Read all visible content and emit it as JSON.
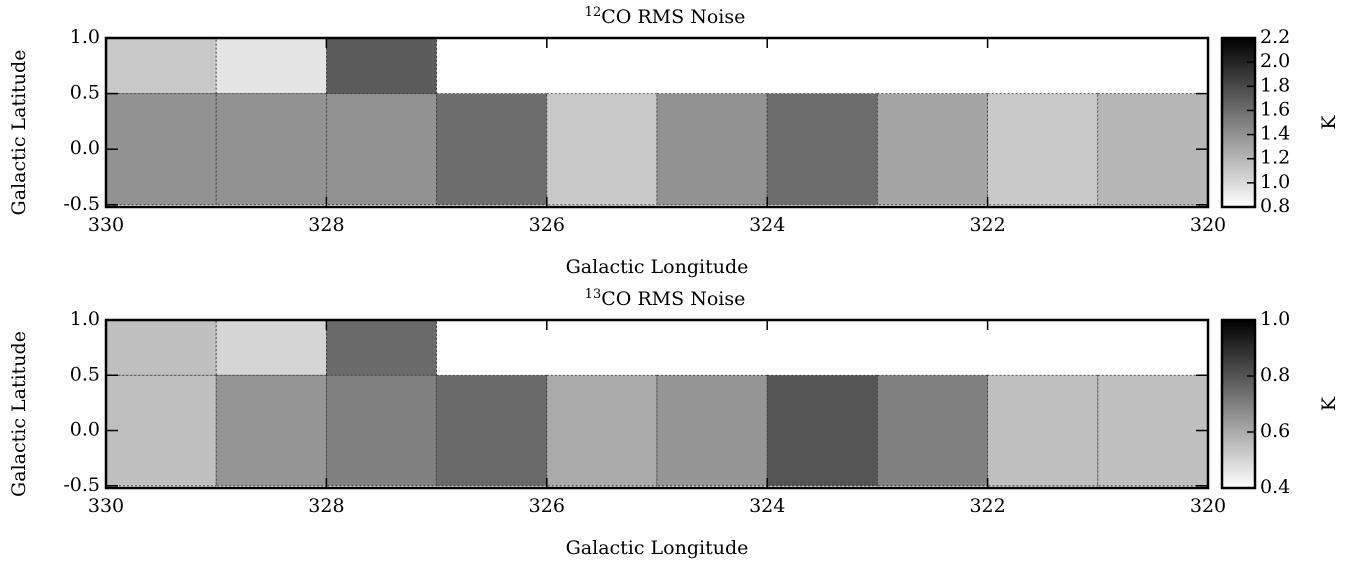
{
  "chart_data": [
    {
      "type": "heatmap",
      "title_superscript": "12",
      "title": "CO RMS Noise",
      "x_label": "Galactic Longitude",
      "y_label": "Galactic Latitude",
      "colorbar_label": "K",
      "xlim": [
        330,
        320
      ],
      "xticks": [
        330,
        328,
        326,
        324,
        322,
        320
      ],
      "ylim": [
        -0.52,
        1.0
      ],
      "yticks": [
        -0.5,
        {
          "value": 0,
          "label": "0.0"
        },
        0.5,
        {
          "value": 1,
          "label": "1.0"
        }
      ],
      "clim": [
        0.8,
        2.2
      ],
      "cticks": [
        0.8,
        {
          "value": 1,
          "label": "1.0"
        },
        1.2,
        1.4,
        1.6,
        1.8,
        {
          "value": 2,
          "label": "2.0"
        },
        2.2
      ],
      "tiles": [
        {
          "lon": [
            330,
            329
          ],
          "lat": [
            0.5,
            1.0
          ],
          "value": 1.1
        },
        {
          "lon": [
            329,
            328
          ],
          "lat": [
            0.5,
            1.0
          ],
          "value": 0.95
        },
        {
          "lon": [
            328,
            327
          ],
          "lat": [
            0.5,
            1.0
          ],
          "value": 1.7
        },
        {
          "lon": [
            330,
            329
          ],
          "lat": [
            -0.5,
            0.5
          ],
          "value": 1.4
        },
        {
          "lon": [
            329,
            328
          ],
          "lat": [
            -0.5,
            0.5
          ],
          "value": 1.4
        },
        {
          "lon": [
            328,
            327
          ],
          "lat": [
            -0.5,
            0.5
          ],
          "value": 1.4
        },
        {
          "lon": [
            327,
            326
          ],
          "lat": [
            -0.5,
            0.5
          ],
          "value": 1.6
        },
        {
          "lon": [
            326,
            325
          ],
          "lat": [
            -0.5,
            0.5
          ],
          "value": 1.1
        },
        {
          "lon": [
            325,
            324
          ],
          "lat": [
            -0.5,
            0.5
          ],
          "value": 1.4
        },
        {
          "lon": [
            324,
            323
          ],
          "lat": [
            -0.5,
            0.5
          ],
          "value": 1.6
        },
        {
          "lon": [
            323,
            322
          ],
          "lat": [
            -0.5,
            0.5
          ],
          "value": 1.3
        },
        {
          "lon": [
            322,
            321
          ],
          "lat": [
            -0.5,
            0.5
          ],
          "value": 1.1
        },
        {
          "lon": [
            321,
            320
          ],
          "lat": [
            -0.5,
            0.5
          ],
          "value": 1.2
        }
      ]
    },
    {
      "type": "heatmap",
      "title_superscript": "13",
      "title": "CO RMS Noise",
      "x_label": "Galactic Longitude",
      "y_label": "Galactic Latitude",
      "colorbar_label": "K",
      "xlim": [
        330,
        320
      ],
      "xticks": [
        330,
        328,
        326,
        324,
        322,
        320
      ],
      "ylim": [
        -0.52,
        1.0
      ],
      "yticks": [
        -0.5,
        {
          "value": 0,
          "label": "0.0"
        },
        0.5,
        {
          "value": 1,
          "label": "1.0"
        }
      ],
      "clim": [
        0.4,
        1.0
      ],
      "cticks": [
        0.4,
        0.6,
        0.8,
        {
          "value": 1,
          "label": "1.0"
        }
      ],
      "tiles": [
        {
          "lon": [
            330,
            329
          ],
          "lat": [
            0.5,
            1.0
          ],
          "value": 0.55
        },
        {
          "lon": [
            329,
            328
          ],
          "lat": [
            0.5,
            1.0
          ],
          "value": 0.5
        },
        {
          "lon": [
            328,
            327
          ],
          "lat": [
            0.5,
            1.0
          ],
          "value": 0.75
        },
        {
          "lon": [
            330,
            329
          ],
          "lat": [
            -0.5,
            0.5
          ],
          "value": 0.55
        },
        {
          "lon": [
            329,
            328
          ],
          "lat": [
            -0.5,
            0.5
          ],
          "value": 0.65
        },
        {
          "lon": [
            328,
            327
          ],
          "lat": [
            -0.5,
            0.5
          ],
          "value": 0.7
        },
        {
          "lon": [
            327,
            326
          ],
          "lat": [
            -0.5,
            0.5
          ],
          "value": 0.75
        },
        {
          "lon": [
            326,
            325
          ],
          "lat": [
            -0.5,
            0.5
          ],
          "value": 0.6
        },
        {
          "lon": [
            325,
            324
          ],
          "lat": [
            -0.5,
            0.5
          ],
          "value": 0.65
        },
        {
          "lon": [
            324,
            323
          ],
          "lat": [
            -0.5,
            0.5
          ],
          "value": 0.8
        },
        {
          "lon": [
            323,
            322
          ],
          "lat": [
            -0.5,
            0.5
          ],
          "value": 0.7
        },
        {
          "lon": [
            322,
            321
          ],
          "lat": [
            -0.5,
            0.5
          ],
          "value": 0.55
        },
        {
          "lon": [
            321,
            320
          ],
          "lat": [
            -0.5,
            0.5
          ],
          "value": 0.55
        }
      ]
    }
  ]
}
